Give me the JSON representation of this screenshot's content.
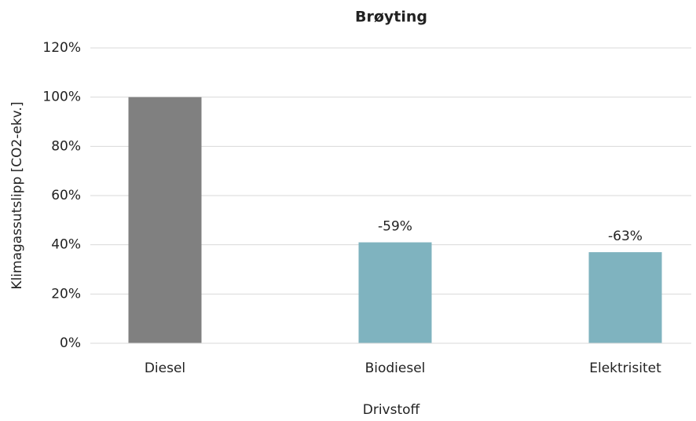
{
  "chart_data": {
    "type": "bar",
    "title": "Brøyting",
    "x_label": "Drivstoff",
    "y_label": "Klimagassutslipp [CO2-ekv.]",
    "categories": [
      "Diesel",
      "Biodiesel",
      "Elektrisitet"
    ],
    "values": [
      100,
      41,
      37
    ],
    "colors": [
      "#808080",
      "#7fb3bf",
      "#7fb3bf"
    ],
    "annotations": [
      null,
      "-59%",
      "-63%"
    ],
    "ylim": [
      0,
      120
    ],
    "yticks": [
      {
        "value": 0,
        "label": "0%"
      },
      {
        "value": 20,
        "label": "20%"
      },
      {
        "value": 40,
        "label": "40%"
      },
      {
        "value": 60,
        "label": "60%"
      },
      {
        "value": 80,
        "label": "80%"
      },
      {
        "value": 100,
        "label": "100%"
      },
      {
        "value": 120,
        "label": "120%"
      }
    ],
    "grid": true
  }
}
